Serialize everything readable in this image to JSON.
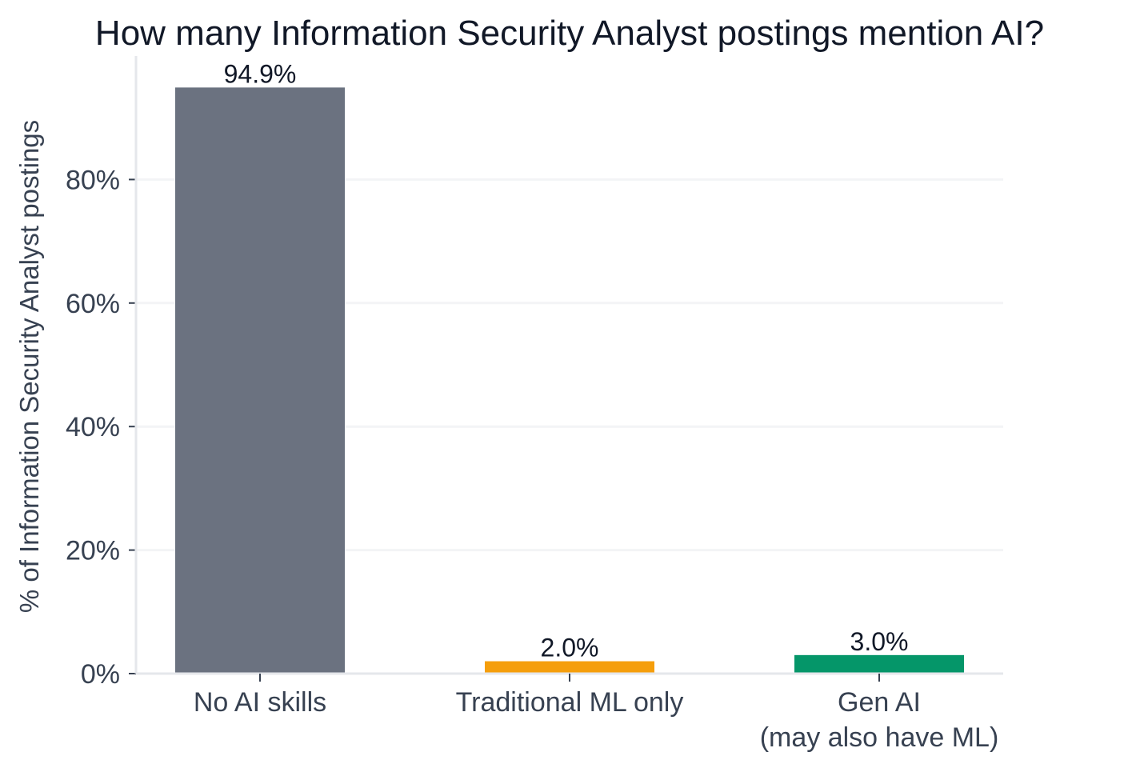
{
  "chart_data": {
    "type": "bar",
    "title": "How many Information Security Analyst postings mention AI?",
    "xlabel": "",
    "ylabel": "% of Information Security Analyst postings",
    "categories": [
      [
        "No AI skills"
      ],
      [
        "Traditional ML only"
      ],
      [
        "Gen AI",
        "(may also have ML)"
      ]
    ],
    "values": [
      94.9,
      2.0,
      3.0
    ],
    "value_labels": [
      "94.9%",
      "2.0%",
      "3.0%"
    ],
    "bar_colors": [
      "#6b7280",
      "#f59e0b",
      "#059669"
    ],
    "yticks": [
      0,
      20,
      40,
      60,
      80
    ],
    "ytick_labels": [
      "0%",
      "20%",
      "40%",
      "60%",
      "80%"
    ],
    "ylim": [
      0,
      100
    ],
    "grid": true,
    "legend": "none",
    "colors": {
      "text": "#111827",
      "axis_text": "#374151",
      "grid": "#f3f4f6",
      "axis": "#e5e7eb"
    }
  }
}
